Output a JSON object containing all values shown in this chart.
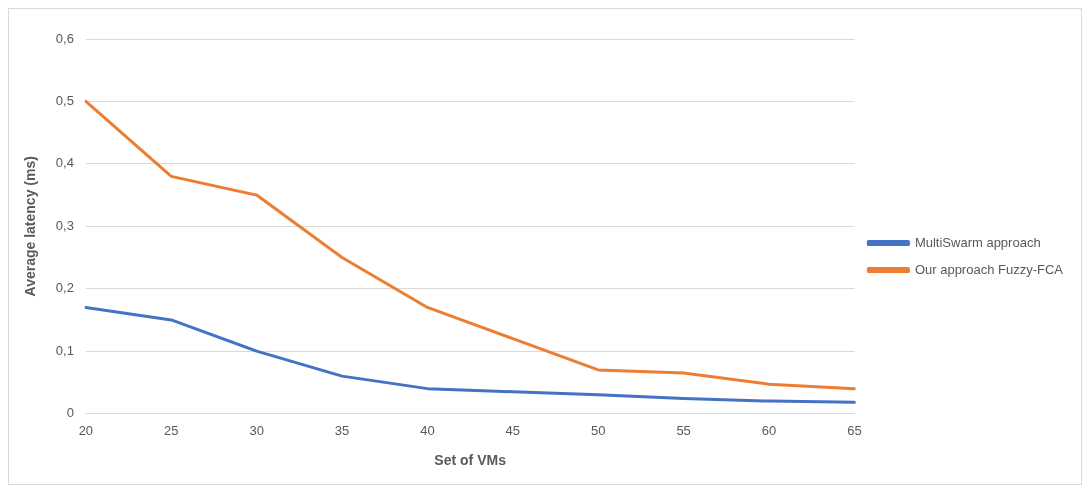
{
  "chart_data": {
    "type": "line",
    "xlabel": "Set of VMs",
    "ylabel": "Average latency (ms)",
    "categories": [
      "20",
      "25",
      "30",
      "35",
      "40",
      "45",
      "50",
      "55",
      "60",
      "65"
    ],
    "series": [
      {
        "name": "MultiSwarm approach",
        "color": "#4472c4",
        "values": [
          0.17,
          0.15,
          0.1,
          0.06,
          0.04,
          0.035,
          0.03,
          0.024,
          0.02,
          0.018
        ]
      },
      {
        "name": "Our approach Fuzzy-FCA",
        "color": "#ed7d31",
        "values": [
          0.5,
          0.38,
          0.35,
          0.25,
          0.17,
          0.12,
          0.07,
          0.065,
          0.047,
          0.04
        ]
      }
    ],
    "ylim": [
      0,
      0.6
    ],
    "yticks": [
      0,
      {
        "value": 0.1,
        "label": "0,1"
      },
      {
        "value": 0.2,
        "label": "0,2"
      },
      {
        "value": 0.3,
        "label": "0,3"
      },
      {
        "value": 0.4,
        "label": "0,4"
      },
      {
        "value": 0.5,
        "label": "0,5"
      },
      {
        "value": 0.6,
        "label": "0,6"
      }
    ],
    "grid": "y",
    "legend": "right",
    "marker": "none",
    "line_style": "solid"
  }
}
